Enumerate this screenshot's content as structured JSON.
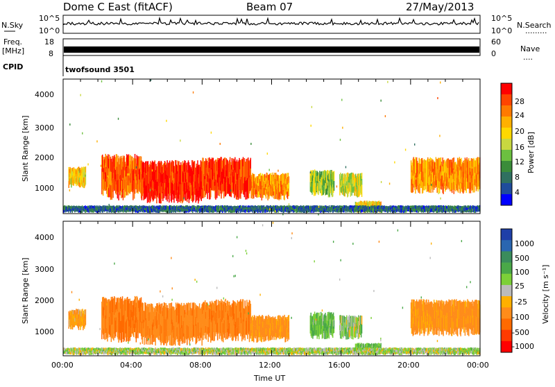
{
  "header": {
    "station": "Dome C East (fitACF)",
    "beam": "Beam 07",
    "date": "27/May/2013"
  },
  "noise_panel": {
    "left_label": "N.Sky",
    "right_label": "N.Search",
    "right_marker": ".........",
    "left_ticks": [
      "10^5",
      "10^0"
    ],
    "right_ticks": [
      "10^5",
      "10^0"
    ]
  },
  "freq_panel": {
    "left_label_1": "Freq.",
    "left_label_2": "[MHz]",
    "right_label": "Nave",
    "right_marker": "....",
    "left_ticks": [
      "18",
      "8"
    ],
    "right_ticks": [
      "60",
      "0"
    ]
  },
  "cpid": {
    "label": "CPID",
    "program": "twofsound 3501"
  },
  "power_panel": {
    "ylabel": "Slant Range [km]",
    "yticks": [
      "4000",
      "3000",
      "2000",
      "1000"
    ],
    "colorbar_label": "Power [dB]",
    "colorbar_ticks": [
      "28",
      "24",
      "20",
      "16",
      "12",
      "8",
      "4"
    ],
    "colorbar_colors": [
      "#ff0000",
      "#ff4400",
      "#ff7a00",
      "#ffb000",
      "#ffd800",
      "#c8d840",
      "#6cc040",
      "#3a8c3a",
      "#2f7060",
      "#1f4c9c",
      "#0000ff"
    ]
  },
  "velocity_panel": {
    "ylabel": "Slant Range [km]",
    "yticks": [
      "4000",
      "3000",
      "2000",
      "1000"
    ],
    "colorbar_label": "Velocity [m s⁻¹]",
    "colorbar_ticks": [
      "1000",
      "500",
      "100",
      "25",
      "-25",
      "-100",
      "-500",
      "-1000"
    ],
    "colorbar_colors": [
      "#1f3fa8",
      "#2a66b0",
      "#3a8c5c",
      "#4aa848",
      "#7cd038",
      "#bbbbbb",
      "#ffb000",
      "#ff8c1a",
      "#ff6a00",
      "#ff3a00",
      "#ff0000"
    ]
  },
  "xaxis": {
    "label": "Time UT",
    "ticks": [
      "00:00",
      "04:00",
      "08:00",
      "12:00",
      "16:00",
      "20:00",
      "00:00"
    ]
  },
  "chart_data": {
    "type": "heatmap",
    "x_range_hours": [
      0,
      24
    ],
    "y_range_km": [
      180,
      4500
    ],
    "echo_regions": [
      {
        "t_start": 0.3,
        "t_end": 1.3,
        "r_min": 1000,
        "r_max": 1700,
        "power_db": 18,
        "velocity": -100
      },
      {
        "t_start": 2.2,
        "t_end": 4.5,
        "r_min": 600,
        "r_max": 2100,
        "power_db": 24,
        "velocity": -250
      },
      {
        "t_start": 4.5,
        "t_end": 8.0,
        "r_min": 500,
        "r_max": 1900,
        "power_db": 28,
        "velocity": -200
      },
      {
        "t_start": 8.0,
        "t_end": 10.8,
        "r_min": 600,
        "r_max": 2000,
        "power_db": 27,
        "velocity": -220
      },
      {
        "t_start": 10.8,
        "t_end": 13.0,
        "r_min": 600,
        "r_max": 1500,
        "power_db": 22,
        "velocity": -150
      },
      {
        "t_start": 14.2,
        "t_end": 15.6,
        "r_min": 700,
        "r_max": 1600,
        "power_db": 14,
        "velocity": 100
      },
      {
        "t_start": 15.9,
        "t_end": 17.2,
        "r_min": 700,
        "r_max": 1500,
        "power_db": 16,
        "velocity": 50
      },
      {
        "t_start": 16.8,
        "t_end": 18.3,
        "r_min": 200,
        "r_max": 600,
        "power_db": 18,
        "velocity": 100
      },
      {
        "t_start": 20.0,
        "t_end": 24.0,
        "r_min": 800,
        "r_max": 2000,
        "power_db": 22,
        "velocity": -150
      },
      {
        "t_start": 0.0,
        "t_end": 24.0,
        "r_min": 200,
        "r_max": 450,
        "power_db": 6,
        "velocity": 30
      }
    ]
  }
}
